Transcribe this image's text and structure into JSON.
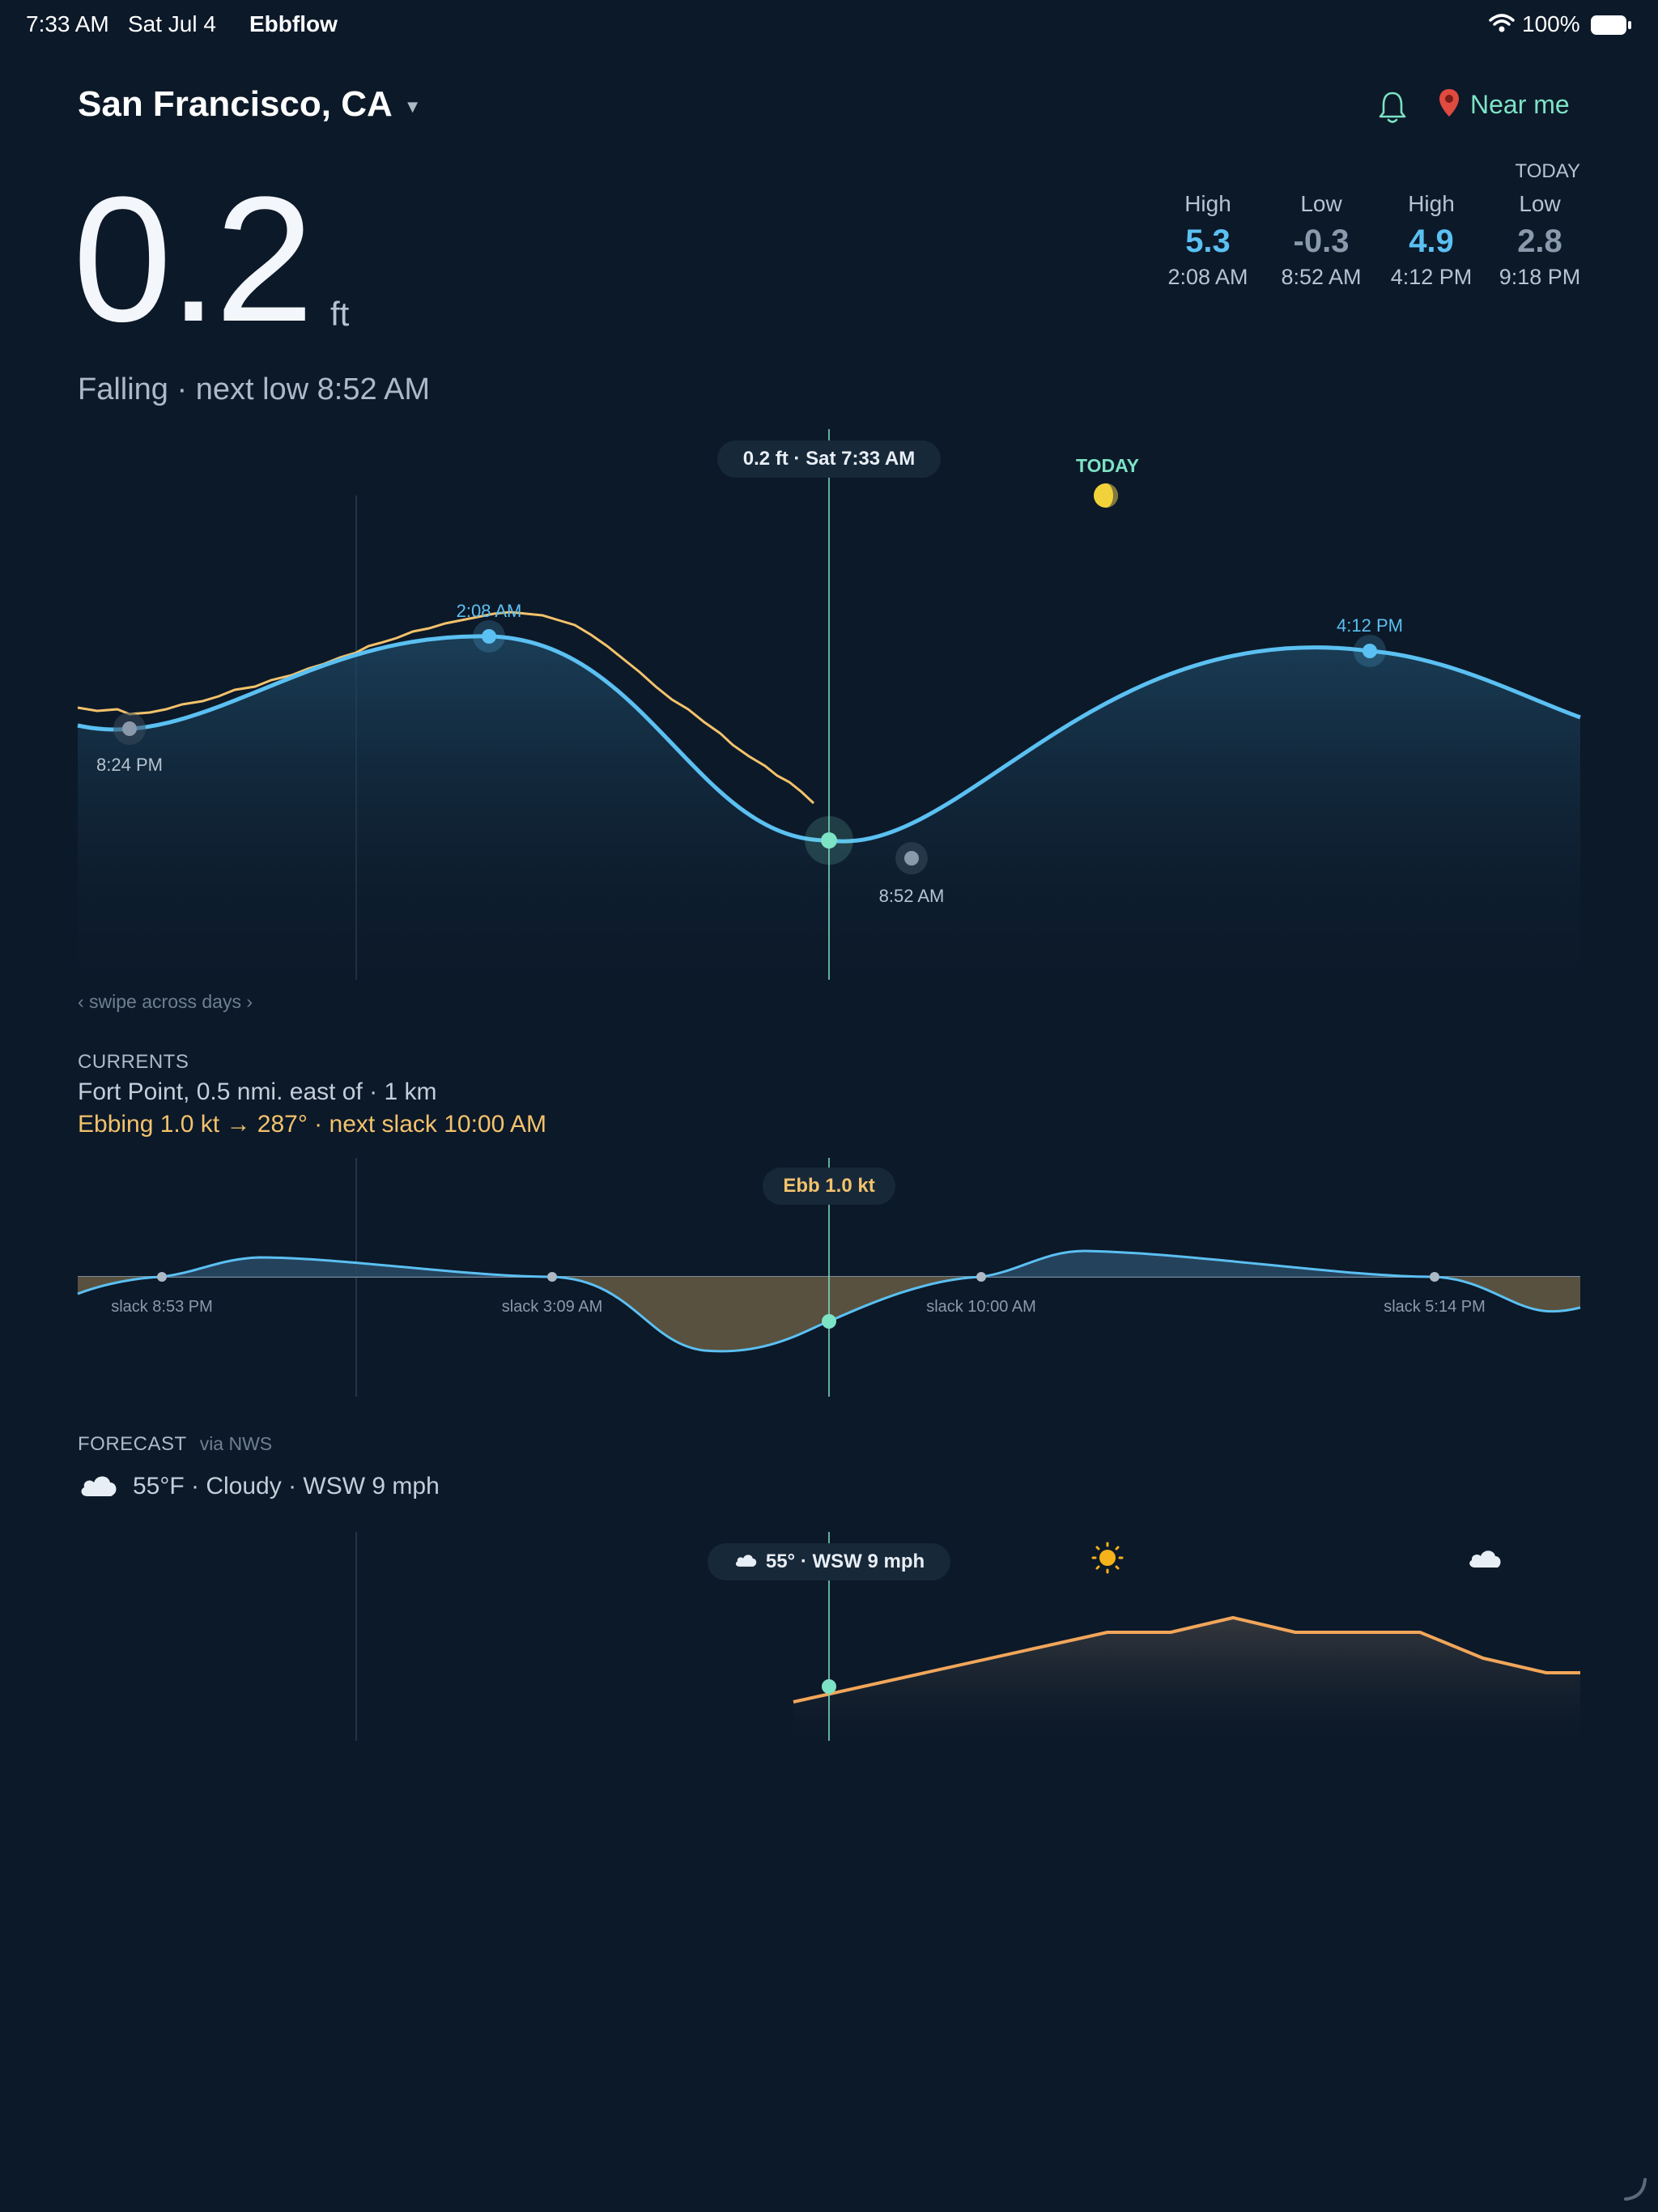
{
  "status_bar": {
    "time": "7:33 AM",
    "date": "Sat Jul 4",
    "app": "Ebbflow",
    "battery": "100%"
  },
  "header": {
    "location": "San Francisco, CA",
    "near_me": "Near me"
  },
  "current": {
    "height": "0.2",
    "unit": "ft",
    "trend": "Falling · next low 8:52 AM"
  },
  "today": {
    "label": "TODAY",
    "extremes": [
      {
        "kind": "High",
        "value": "5.3",
        "time": "2:08 AM",
        "color": "#5bc0f2"
      },
      {
        "kind": "Low",
        "value": "-0.3",
        "time": "8:52 AM",
        "color": "#8a99ab"
      },
      {
        "kind": "High",
        "value": "4.9",
        "time": "4:12 PM",
        "color": "#5bc0f2"
      },
      {
        "kind": "Low",
        "value": "2.8",
        "time": "9:18 PM",
        "color": "#8a99ab"
      }
    ]
  },
  "tide_chart": {
    "tooltip": "0.2 ft · Sat 7:33 AM",
    "day_label": "TODAY",
    "labels": {
      "low_evening": "8:24 PM",
      "high_1": "2:08 AM",
      "low_1": "8:52 AM",
      "high_2": "4:12 PM"
    },
    "hint": "‹ swipe across days ›"
  },
  "currents": {
    "label": "CURRENTS",
    "station": "Fort Point, 0.5 nmi. east of · 1 km",
    "status": "Ebbing 1.0 kt → 287° · next slack 10:00 AM",
    "tooltip": "Ebb 1.0 kt",
    "slack_labels": [
      "slack 8:53 PM",
      "slack 3:09 AM",
      "slack 10:00 AM",
      "slack 5:14 PM"
    ]
  },
  "forecast": {
    "label": "FORECAST",
    "source": "via NWS",
    "summary": "55°F · Cloudy · WSW 9 mph",
    "tooltip": "55° · WSW 9 mph"
  },
  "icons": {
    "wifi": "wifi-icon",
    "battery": "battery-icon",
    "bell": "bell-icon",
    "pin": "pin-icon",
    "moon": "moon-icon",
    "cloud": "cloud-icon",
    "sun": "sun-icon",
    "dropdown": "chevron-down-icon"
  },
  "colors": {
    "background": "#0c1929",
    "tide": "#5bc0f2",
    "observed": "#f3c26b",
    "accent": "#7de3c5",
    "ebb_fill": "#58513f",
    "flood_fill": "#2a4a66",
    "temp": "#f2a65a"
  }
}
